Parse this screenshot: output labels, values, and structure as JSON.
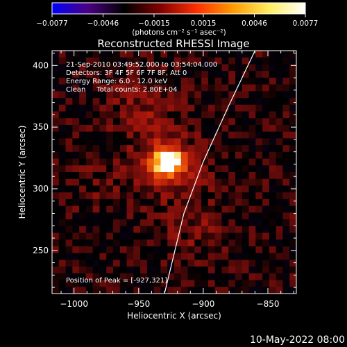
{
  "chart_data": {
    "type": "heatmap",
    "title": "Reconstructed RHESSI Image",
    "xlabel": "Heliocentric X (arcsec)",
    "ylabel": "Heliocentric Y (arcsec)",
    "xlim": [
      -1017,
      -828
    ],
    "ylim": [
      215,
      412
    ],
    "x_ticks": [
      -1000,
      -950,
      -900,
      -850
    ],
    "y_ticks": [
      250,
      300,
      350,
      400
    ],
    "x_tick_labels": [
      "−1000",
      "−950",
      "−900",
      "−850"
    ],
    "y_tick_labels": [
      "250",
      "300",
      "350",
      "400"
    ],
    "colorbar": {
      "range": [
        -0.0077,
        0.0077
      ],
      "ticks": [
        -0.0077,
        -0.0046,
        -0.0015,
        0.0015,
        0.0046,
        0.0077
      ],
      "tick_labels": [
        "−0.0077",
        "−0.0046",
        "−0.0015",
        "0.0015",
        "0.0046",
        "0.0077"
      ],
      "unit_label": "(photons cm⁻² s⁻¹ asec⁻²)",
      "colors": [
        "#0000ff",
        "#4b0082",
        "#000000",
        "#800000",
        "#ff3000",
        "#ff9a00",
        "#ffee60",
        "#ffffff"
      ]
    },
    "annotations": [
      "21-Sep-2010 03:49:52.000 to 03:54:04.000",
      "Detectors: 3F 4F 5F 6F 7F 8F, Att 0",
      "Energy Range: 6.0 - 12.0 keV",
      "Clean     Total counts: 2.80E+04"
    ],
    "peak_label": "Position of Peak = [-927,321]",
    "peak": {
      "x": -927,
      "y": 321
    },
    "limb_points": [
      [
        -930,
        215
      ],
      [
        -915,
        280
      ],
      [
        -900,
        322
      ],
      [
        -880,
        368
      ],
      [
        -860,
        412
      ]
    ],
    "grid": false
  },
  "footer_date": "10-May-2022 08:00"
}
